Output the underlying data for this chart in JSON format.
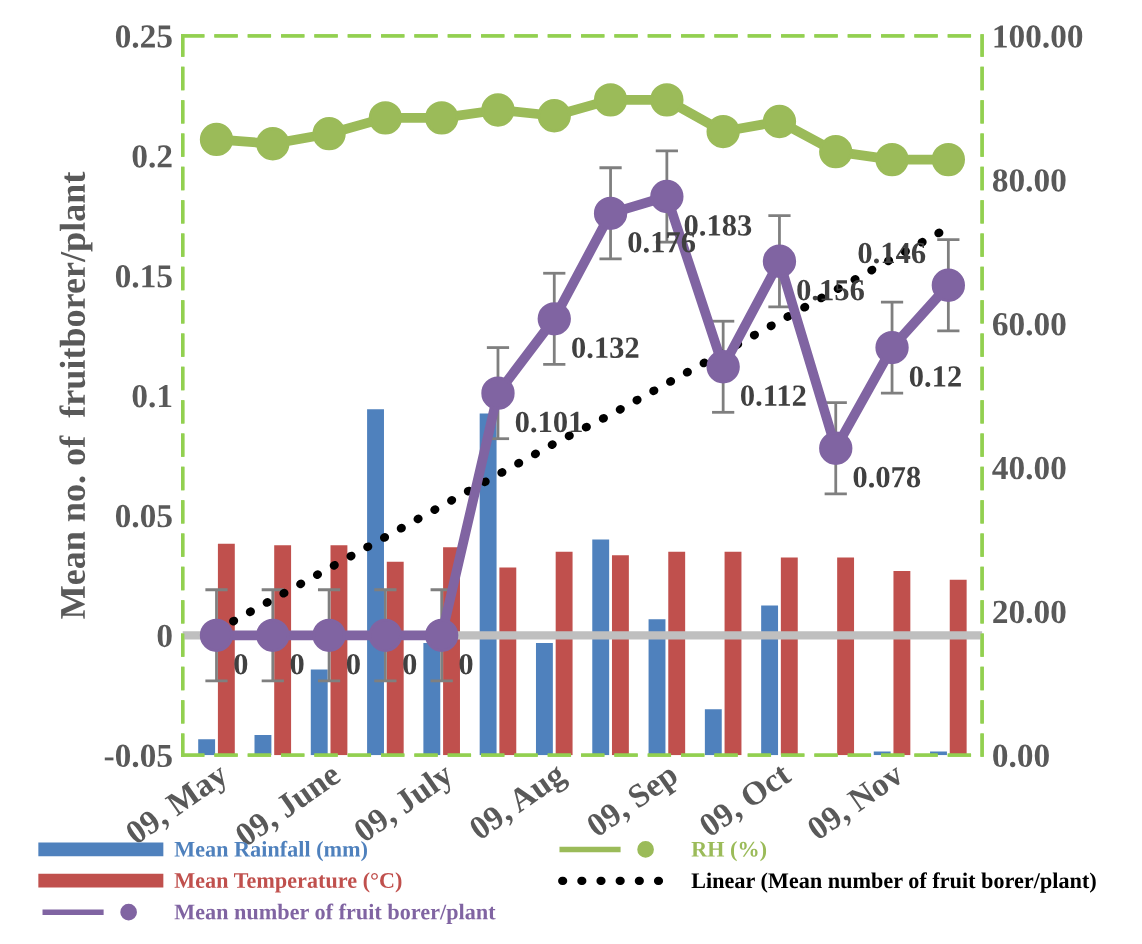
{
  "chart_data": {
    "type": "bar",
    "ylabel": "Mean no. of  fruitborer/plant",
    "categories": [
      "09, May",
      null,
      "09, June",
      null,
      "09, July",
      null,
      "09, Aug",
      null,
      "09, Sep",
      null,
      "09, Oct",
      null,
      "09, Nov",
      null
    ],
    "series": [
      {
        "name": "Mean Rainfall (mm)",
        "axis": "y2",
        "color": "#4f81bd",
        "values": [
          2.2,
          2.8,
          11.9,
          48.1,
          15.6,
          47.5,
          15.6,
          30,
          18.9,
          6.4,
          20.8,
          0,
          0.5,
          0.5
        ]
      },
      {
        "name": "Mean Temperature (°C)",
        "axis": "y2",
        "color": "#c0504d",
        "values": [
          29.4,
          29.2,
          29.2,
          26.9,
          28.9,
          26.1,
          28.3,
          27.8,
          28.3,
          28.3,
          27.5,
          27.5,
          25.6,
          24.4
        ]
      },
      {
        "name": "Mean number of fruit borer/plant",
        "type": "line",
        "color": "#8064a2",
        "marker": "circle",
        "data_labels": true,
        "values": [
          0,
          0,
          0,
          0,
          0,
          0.101,
          0.132,
          0.176,
          0.183,
          0.112,
          0.156,
          0.078,
          0.12,
          0.146
        ],
        "errors": [
          0.019,
          0.019,
          0.019,
          0.019,
          0.019,
          0.019,
          0.019,
          0.019,
          0.019,
          0.019,
          0.019,
          0.019,
          0.019,
          0.019
        ]
      },
      {
        "name": "RH (%)",
        "type": "line",
        "axis": "y2",
        "color": "#9bbb59",
        "marker": "circle",
        "values": [
          85.6,
          85.0,
          86.4,
          88.6,
          88.6,
          89.7,
          88.9,
          91.1,
          91.1,
          86.7,
          88.1,
          83.9,
          82.8,
          82.8
        ]
      },
      {
        "name": "Linear (Mean number of fruit borer/plant)",
        "type": "line",
        "color": "#000000",
        "line_style": "dotted",
        "marker": "none",
        "values": [
          0.002,
          0.015,
          0.028,
          0.041,
          0.054,
          0.067,
          0.08,
          0.092,
          0.105,
          0.118,
          0.131,
          0.144,
          0.157,
          0.17
        ]
      }
    ],
    "ylim": [
      -0.05,
      0.25
    ],
    "yticks": [
      -0.05,
      0,
      0.05,
      0.1,
      0.15,
      0.2,
      0.25
    ],
    "y2lim": [
      0,
      100
    ],
    "y2ticks": [
      {
        "value": 0,
        "label": "0.00"
      },
      {
        "value": 20,
        "label": "20.00"
      },
      {
        "value": 40,
        "label": "40.00"
      },
      {
        "value": 60,
        "label": "60.00"
      },
      {
        "value": 80,
        "label": "80.00"
      },
      {
        "value": 100,
        "label": "100.00"
      }
    ],
    "ref_lines": [
      {
        "axis": "y",
        "value": 0,
        "color": "#bfbfbf"
      }
    ],
    "grid": false,
    "legend": "bottom"
  }
}
